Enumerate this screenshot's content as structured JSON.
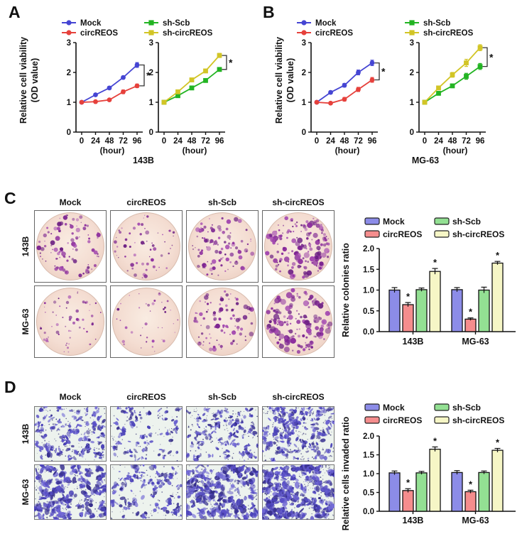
{
  "figure": {
    "panels": {
      "A": {
        "label": "A",
        "cell_line": "143B",
        "ylabel_line1": "Relative cell viability",
        "ylabel_line2": "(OD value)"
      },
      "B": {
        "label": "B",
        "cell_line": "MG-63",
        "ylabel_line1": "Relative cell viability",
        "ylabel_line2": "(OD value)"
      },
      "C": {
        "label": "C",
        "image_type": "colony formation wells",
        "column_headers": [
          "Mock",
          "circREOS",
          "sh-Scb",
          "sh-circREOS"
        ],
        "row_labels": [
          "143B",
          "MG-63"
        ],
        "stain_color": "#8e2f9e",
        "background_color": "#f4ddd2",
        "images": [
          [
            {
              "count": 95,
              "size": 1.0
            },
            {
              "count": 60,
              "size": 0.9
            },
            {
              "count": 95,
              "size": 1.0
            },
            {
              "count": 160,
              "size": 1.25
            }
          ],
          [
            {
              "count": 60,
              "size": 0.75
            },
            {
              "count": 40,
              "size": 0.7
            },
            {
              "count": 95,
              "size": 1.0
            },
            {
              "count": 150,
              "size": 1.3
            }
          ]
        ]
      },
      "D": {
        "label": "D",
        "image_type": "transwell invasion fields",
        "column_headers": [
          "Mock",
          "circREOS",
          "sh-Scb",
          "sh-circREOS"
        ],
        "row_labels": [
          "143B",
          "MG-63"
        ],
        "stain_color": "#4a42b8",
        "background_color": "#edf3ee",
        "images": [
          [
            {
              "count": 120,
              "size": 1.0
            },
            {
              "count": 70,
              "size": 0.95
            },
            {
              "count": 105,
              "size": 0.95
            },
            {
              "count": 150,
              "size": 1.05
            }
          ],
          [
            {
              "count": 150,
              "size": 1.3
            },
            {
              "count": 85,
              "size": 1.05
            },
            {
              "count": 160,
              "size": 1.35
            },
            {
              "count": 200,
              "size": 1.35
            }
          ]
        ]
      }
    }
  },
  "chart_data": [
    {
      "type": "line",
      "panel": "A",
      "position": "left",
      "cell_line": "143B",
      "x": [
        0,
        24,
        48,
        72,
        96
      ],
      "xlabel": "(hour)",
      "ylabel": "Relative cell viability (OD value)",
      "ylim": [
        0,
        3
      ],
      "yticks": [
        "0",
        "1",
        "2",
        "3"
      ],
      "significance": "*",
      "series": [
        {
          "name": "Mock",
          "color": "#4545d3",
          "marker": "circle",
          "values": [
            1.0,
            1.25,
            1.48,
            1.83,
            2.25
          ],
          "errors": [
            0.03,
            0.04,
            0.05,
            0.05,
            0.08
          ]
        },
        {
          "name": "circREOS",
          "color": "#e6413c",
          "marker": "circle",
          "values": [
            1.0,
            1.02,
            1.08,
            1.35,
            1.55
          ],
          "errors": [
            0.03,
            0.03,
            0.04,
            0.06,
            0.06
          ]
        }
      ]
    },
    {
      "type": "line",
      "panel": "A",
      "position": "right",
      "cell_line": "143B",
      "x": [
        0,
        24,
        48,
        72,
        96
      ],
      "xlabel": "(hour)",
      "ylabel": "Relative cell viability (OD value)",
      "ylim": [
        0,
        3
      ],
      "yticks": [
        "0",
        "1",
        "2",
        "3"
      ],
      "significance": "*",
      "series": [
        {
          "name": "sh-Scb",
          "color": "#22b422",
          "marker": "square",
          "values": [
            1.0,
            1.22,
            1.48,
            1.73,
            2.1
          ],
          "errors": [
            0.03,
            0.04,
            0.05,
            0.05,
            0.06
          ]
        },
        {
          "name": "sh-circREOS",
          "color": "#d2c526",
          "marker": "square",
          "values": [
            1.0,
            1.35,
            1.75,
            2.05,
            2.57
          ],
          "errors": [
            0.03,
            0.05,
            0.06,
            0.06,
            0.07
          ]
        }
      ]
    },
    {
      "type": "line",
      "panel": "B",
      "position": "left",
      "cell_line": "MG-63",
      "x": [
        0,
        24,
        48,
        72,
        96
      ],
      "xlabel": "(hour)",
      "ylabel": "Relative cell viability (OD value)",
      "ylim": [
        0,
        3
      ],
      "yticks": [
        "0",
        "1",
        "2",
        "3"
      ],
      "significance": "*",
      "series": [
        {
          "name": "Mock",
          "color": "#4545d3",
          "marker": "circle",
          "values": [
            1.0,
            1.33,
            1.57,
            2.0,
            2.32
          ],
          "errors": [
            0.03,
            0.05,
            0.06,
            0.08,
            0.09
          ]
        },
        {
          "name": "circREOS",
          "color": "#e6413c",
          "marker": "circle",
          "values": [
            1.0,
            0.97,
            1.1,
            1.43,
            1.75
          ],
          "errors": [
            0.03,
            0.04,
            0.06,
            0.07,
            0.08
          ]
        }
      ]
    },
    {
      "type": "line",
      "panel": "B",
      "position": "right",
      "cell_line": "MG-63",
      "x": [
        0,
        24,
        48,
        72,
        96
      ],
      "xlabel": "(hour)",
      "ylabel": "Relative cell viability (OD value)",
      "ylim": [
        0,
        3
      ],
      "yticks": [
        "0",
        "1",
        "2",
        "3"
      ],
      "significance": "*",
      "series": [
        {
          "name": "sh-Scb",
          "color": "#22b422",
          "marker": "square",
          "values": [
            1.0,
            1.3,
            1.55,
            1.87,
            2.2
          ],
          "errors": [
            0.03,
            0.05,
            0.06,
            0.1,
            0.1
          ]
        },
        {
          "name": "sh-circREOS",
          "color": "#d2c526",
          "marker": "square",
          "values": [
            1.0,
            1.48,
            1.92,
            2.32,
            2.83
          ],
          "errors": [
            0.03,
            0.06,
            0.08,
            0.12,
            0.1
          ]
        }
      ]
    },
    {
      "type": "bar",
      "panel": "C",
      "ylabel": "Relative colonies ratio",
      "categories": [
        "143B",
        "MG-63"
      ],
      "ylim": [
        0,
        2
      ],
      "yticks": [
        "0.0",
        "0.5",
        "1.0",
        "1.5",
        "2.0"
      ],
      "significance": "*",
      "series": [
        {
          "name": "Mock",
          "color": "#8c8ce8",
          "values": [
            1.0,
            1.01
          ],
          "errors": [
            0.06,
            0.05
          ],
          "sig": [
            false,
            false
          ]
        },
        {
          "name": "circREOS",
          "color": "#f58d8d",
          "values": [
            0.65,
            0.3
          ],
          "errors": [
            0.05,
            0.03
          ],
          "sig": [
            true,
            true
          ]
        },
        {
          "name": "sh-Scb",
          "color": "#93e093",
          "values": [
            1.01,
            1.0
          ],
          "errors": [
            0.04,
            0.07
          ],
          "sig": [
            false,
            false
          ]
        },
        {
          "name": "sh-circREOS",
          "color": "#f6f6c6",
          "values": [
            1.45,
            1.65
          ],
          "errors": [
            0.07,
            0.04
          ],
          "sig": [
            true,
            true
          ]
        }
      ]
    },
    {
      "type": "bar",
      "panel": "D",
      "ylabel": "Relative cells invaded ratio",
      "categories": [
        "143B",
        "MG-63"
      ],
      "ylim": [
        0,
        2
      ],
      "yticks": [
        "0.0",
        "0.5",
        "1.0",
        "1.5",
        "2.0"
      ],
      "significance": "*",
      "series": [
        {
          "name": "Mock",
          "color": "#8c8ce8",
          "values": [
            1.02,
            1.03
          ],
          "errors": [
            0.05,
            0.05
          ],
          "sig": [
            false,
            false
          ]
        },
        {
          "name": "circREOS",
          "color": "#f58d8d",
          "values": [
            0.55,
            0.52
          ],
          "errors": [
            0.05,
            0.04
          ],
          "sig": [
            true,
            true
          ]
        },
        {
          "name": "sh-Scb",
          "color": "#93e093",
          "values": [
            1.02,
            1.03
          ],
          "errors": [
            0.04,
            0.04
          ],
          "sig": [
            false,
            false
          ]
        },
        {
          "name": "sh-circREOS",
          "color": "#f6f6c6",
          "values": [
            1.65,
            1.62
          ],
          "errors": [
            0.06,
            0.05
          ],
          "sig": [
            true,
            true
          ]
        }
      ]
    }
  ]
}
